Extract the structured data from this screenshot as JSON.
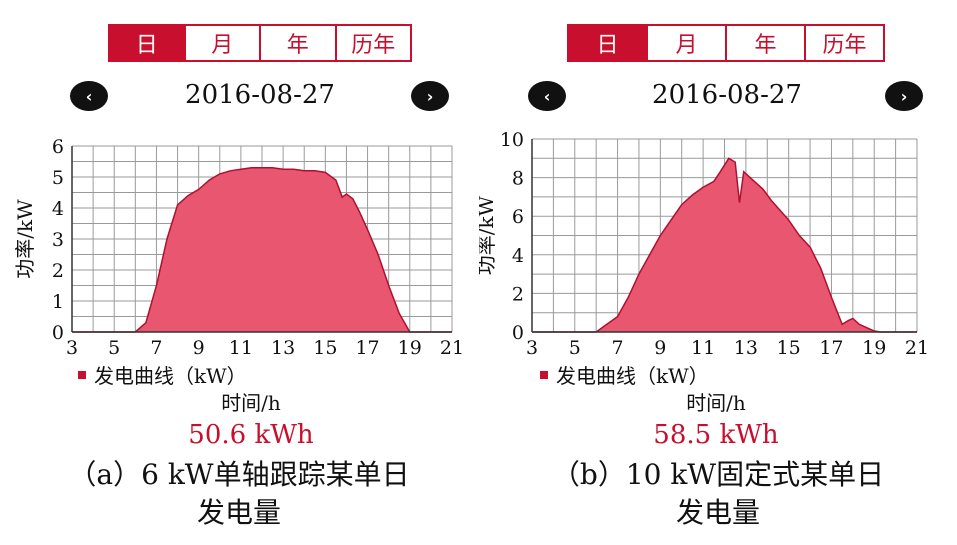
{
  "tabs": [
    "日",
    "月",
    "年",
    "历年"
  ],
  "panels": [
    {
      "date": "2016-08-27",
      "legend": "发电曲线（kW）",
      "xlabel": "时间/h",
      "ylabel": "功率/kW",
      "energy": "50.6 kWh",
      "caption_line1": "（a）6 kW单轴跟踪某单日",
      "caption_line2": "发电量"
    },
    {
      "date": "2016-08-27",
      "legend": "发电曲线（kW）",
      "xlabel": "时间/h",
      "ylabel": "功率/kW",
      "energy": "58.5 kWh",
      "caption_line1": "（b）10 kW固定式某单日",
      "caption_line2": "发电量"
    }
  ],
  "nav": {
    "prev": "‹",
    "next": "›"
  },
  "colors": {
    "accent": "#c8102e",
    "fill": "#e8566f",
    "stroke": "#b01030",
    "grid": "#9a9a9a"
  },
  "chart_data": [
    {
      "type": "area",
      "xlim": [
        3,
        21
      ],
      "ylim": [
        0,
        6
      ],
      "xticks": [
        3,
        5,
        7,
        9,
        11,
        13,
        15,
        17,
        19,
        21
      ],
      "yticks": [
        0,
        1,
        2,
        3,
        4,
        5,
        6
      ],
      "x": [
        3,
        6,
        6.5,
        7,
        7.5,
        8,
        8.5,
        9,
        9.5,
        10,
        10.5,
        11,
        11.5,
        12,
        12.5,
        13,
        13.5,
        14,
        14.5,
        15,
        15.5,
        15.8,
        16,
        16.3,
        16.6,
        17,
        17.5,
        18,
        18.5,
        19,
        21
      ],
      "y": [
        0,
        0,
        0.3,
        1.5,
        3.0,
        4.1,
        4.4,
        4.6,
        4.9,
        5.1,
        5.2,
        5.25,
        5.3,
        5.3,
        5.3,
        5.25,
        5.25,
        5.2,
        5.2,
        5.15,
        4.9,
        4.35,
        4.45,
        4.3,
        3.9,
        3.3,
        2.5,
        1.5,
        0.6,
        0,
        0
      ]
    },
    {
      "type": "area",
      "xlim": [
        3,
        21
      ],
      "ylim": [
        0,
        10
      ],
      "xticks": [
        3,
        5,
        7,
        9,
        11,
        13,
        15,
        17,
        19,
        21
      ],
      "yticks": [
        0,
        2,
        4,
        6,
        8,
        10
      ],
      "x": [
        3,
        6,
        6.5,
        7,
        7.5,
        8,
        8.5,
        9,
        9.5,
        10,
        10.5,
        11,
        11.5,
        11.8,
        12.2,
        12.5,
        12.7,
        12.9,
        13.3,
        13.8,
        14.2,
        14.6,
        15,
        15.5,
        16,
        16.5,
        17,
        17.5,
        17.8,
        18,
        18.3,
        18.7,
        19,
        19.3,
        21
      ],
      "y": [
        0,
        0,
        0.4,
        0.8,
        1.8,
        3.0,
        4.0,
        5.0,
        5.8,
        6.6,
        7.1,
        7.5,
        7.8,
        8.3,
        9.0,
        8.8,
        6.7,
        8.3,
        7.9,
        7.4,
        6.8,
        6.3,
        5.8,
        5.0,
        4.4,
        3.3,
        1.8,
        0.4,
        0.6,
        0.7,
        0.4,
        0.2,
        0.05,
        0,
        0
      ]
    }
  ]
}
